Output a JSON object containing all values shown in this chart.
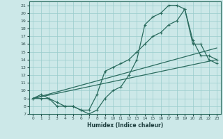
{
  "xlabel": "Humidex (Indice chaleur)",
  "xlim": [
    -0.5,
    23.5
  ],
  "ylim": [
    7,
    21.5
  ],
  "xticks": [
    0,
    1,
    2,
    3,
    4,
    5,
    6,
    7,
    8,
    9,
    10,
    11,
    12,
    13,
    14,
    15,
    16,
    17,
    18,
    19,
    20,
    21,
    22,
    23
  ],
  "yticks": [
    7,
    8,
    9,
    10,
    11,
    12,
    13,
    14,
    15,
    16,
    17,
    18,
    19,
    20,
    21
  ],
  "background_color": "#cce8e8",
  "grid_color": "#99cccc",
  "line_color": "#2a6b5e",
  "line1_x": [
    0,
    1,
    2,
    3,
    4,
    5,
    6,
    7,
    8,
    9,
    10,
    11,
    12,
    13,
    14,
    15,
    16,
    17,
    18,
    19,
    20,
    21,
    22,
    23
  ],
  "line1_y": [
    9,
    9,
    9,
    8,
    8,
    8,
    7.5,
    7,
    7.5,
    9,
    10,
    10.5,
    12,
    14,
    18.5,
    19.5,
    20,
    21,
    21,
    20.5,
    16.5,
    14.5,
    14.5,
    14
  ],
  "line2_x": [
    0,
    1,
    2,
    3,
    4,
    5,
    6,
    7,
    8,
    9,
    10,
    11,
    12,
    13,
    14,
    15,
    16,
    17,
    18,
    19,
    20,
    21,
    22,
    23
  ],
  "line2_y": [
    9,
    9.5,
    9,
    8.5,
    8,
    8,
    7.5,
    7.5,
    9.5,
    12.5,
    13,
    13.5,
    14,
    15,
    16,
    17,
    17.5,
    18.5,
    19,
    20.5,
    16,
    16,
    14,
    13.5
  ],
  "line3_x": [
    0,
    23
  ],
  "line3_y": [
    9,
    14
  ],
  "line4_x": [
    0,
    23
  ],
  "line4_y": [
    9,
    15.5
  ]
}
